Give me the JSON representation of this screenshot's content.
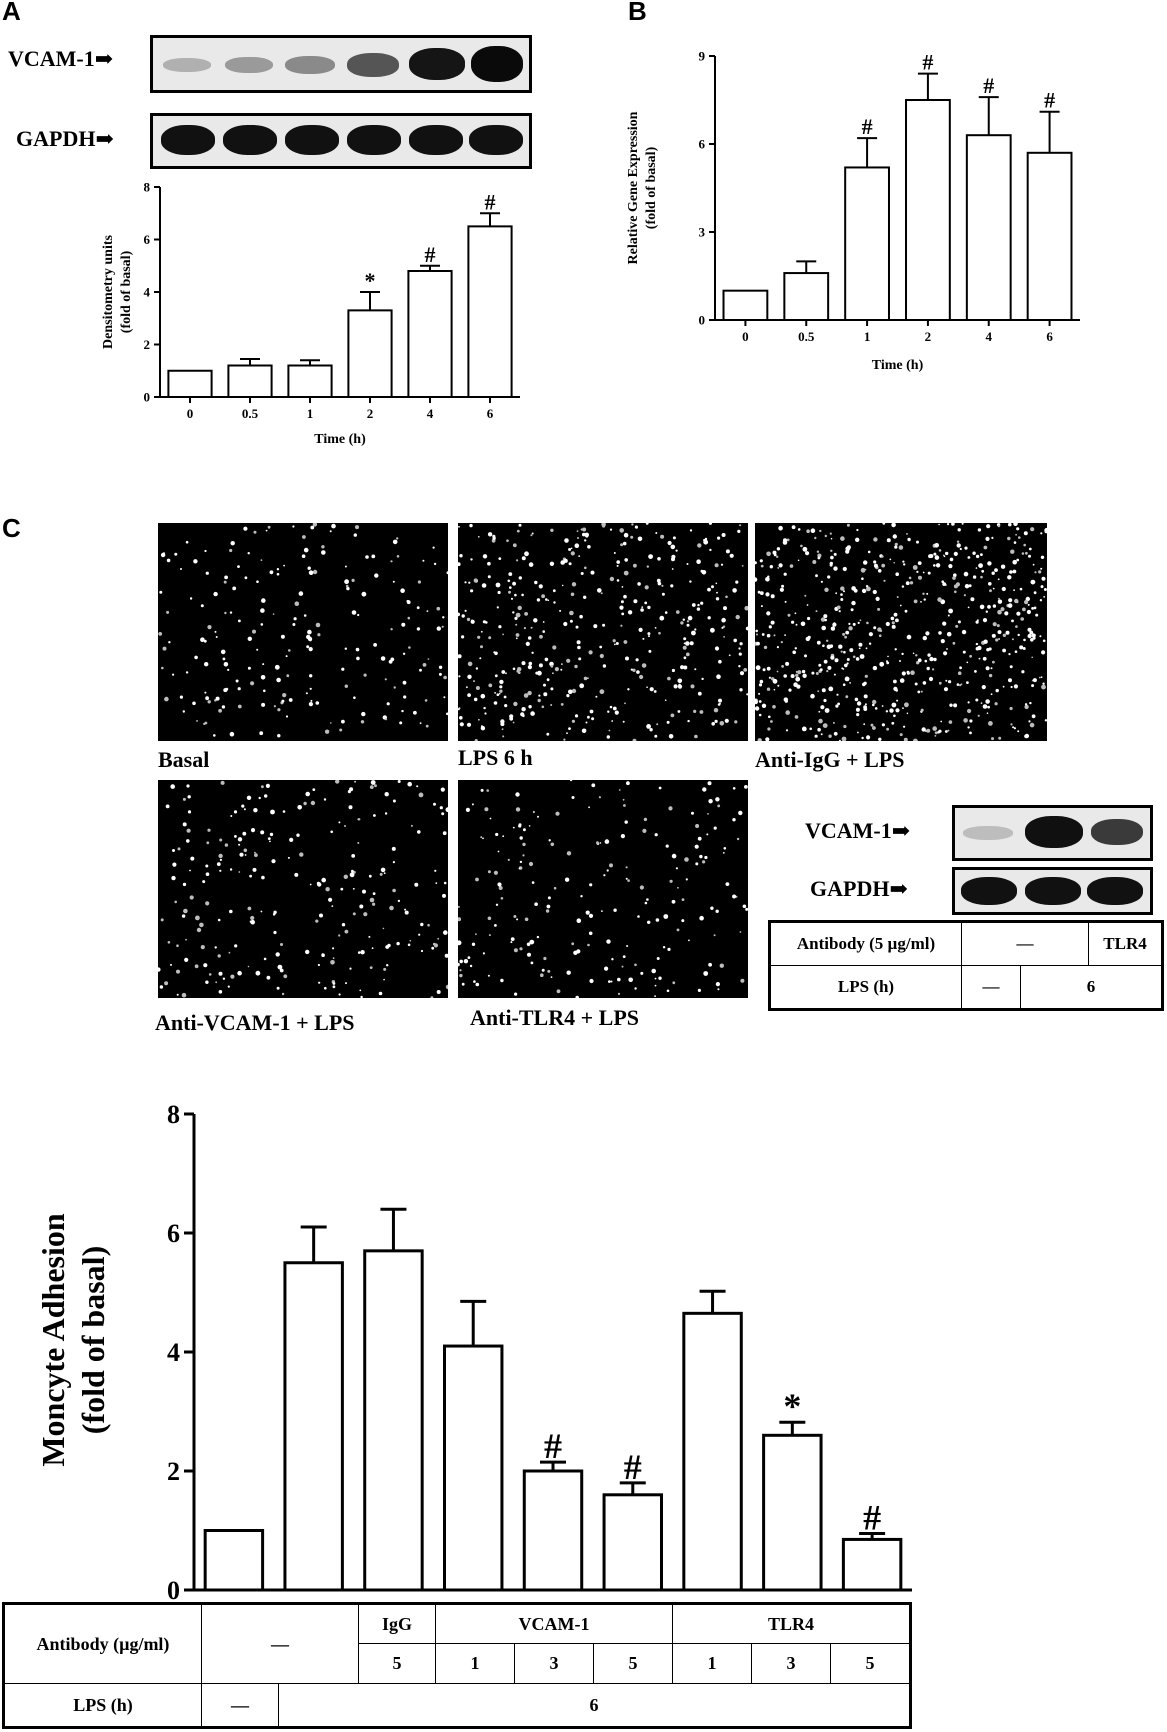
{
  "panels": {
    "a": "A",
    "b": "B",
    "c": "C"
  },
  "blot_a": {
    "label_top": "VCAM-1",
    "label_bottom": "GAPDH"
  },
  "blot_c": {
    "label_top": "VCAM-1",
    "label_bottom": "GAPDH"
  },
  "micrographs": [
    {
      "caption": "Basal",
      "density": 0.3
    },
    {
      "caption": "LPS 6 h",
      "density": 0.6
    },
    {
      "caption": "Anti-IgG + LPS",
      "density": 0.9
    },
    {
      "caption": "Anti-VCAM-1 + LPS",
      "density": 0.35
    },
    {
      "caption": "Anti-TLR4 + LPS",
      "density": 0.3
    }
  ],
  "small_table": {
    "antibody_label": "Antibody (5 µg/ml)",
    "antibody_none": "—",
    "antibody_tlr4": "TLR4",
    "lps_label": "LPS (h)",
    "lps_none": "—",
    "lps_value": "6"
  },
  "bottom_table": {
    "antibody_label": "Antibody (µg/ml)",
    "none": "—",
    "igg": "IgG",
    "vcam": "VCAM-1",
    "tlr4": "TLR4",
    "doses": [
      "5",
      "1",
      "3",
      "5",
      "1",
      "3",
      "5"
    ],
    "lps_label": "LPS (h)",
    "lps_none": "—",
    "lps_value": "6"
  },
  "chart_data": [
    {
      "type": "bar",
      "panel": "A",
      "categories": [
        "0",
        "0.5",
        "1",
        "2",
        "4",
        "6"
      ],
      "values": [
        1.0,
        1.2,
        1.2,
        3.3,
        4.8,
        6.5
      ],
      "errors": [
        0,
        0.25,
        0.2,
        0.7,
        0.2,
        0.5
      ],
      "annotations": [
        "",
        "",
        "",
        "*",
        "#",
        "#"
      ],
      "xlabel": "Time (h)",
      "ylabel": "Densitometry units (fold of basal)",
      "ylim": [
        0,
        8
      ],
      "yticks": [
        0,
        2,
        4,
        6,
        8
      ]
    },
    {
      "type": "bar",
      "panel": "B",
      "categories": [
        "0",
        "0.5",
        "1",
        "2",
        "4",
        "6"
      ],
      "values": [
        1.0,
        1.6,
        5.2,
        7.5,
        6.3,
        5.7
      ],
      "errors": [
        0,
        0.4,
        1.0,
        0.9,
        1.3,
        1.4
      ],
      "annotations": [
        "",
        "",
        "#",
        "#",
        "#",
        "#"
      ],
      "xlabel": "Time (h)",
      "ylabel": "Relative Gene Expression (fold of basal)",
      "ylim": [
        0,
        9
      ],
      "yticks": [
        0,
        3,
        6,
        9
      ]
    },
    {
      "type": "bar",
      "panel": "C",
      "categories": [
        "LPS —",
        "LPS 6",
        "IgG 5",
        "VCAM-1 1",
        "VCAM-1 3",
        "VCAM-1 5",
        "TLR4 1",
        "TLR4 3",
        "TLR4 5"
      ],
      "values": [
        1.0,
        5.5,
        5.7,
        4.1,
        2.0,
        1.6,
        4.65,
        2.6,
        0.85
      ],
      "errors": [
        0,
        0.6,
        0.7,
        0.75,
        0.15,
        0.2,
        0.37,
        0.22,
        0.1
      ],
      "annotations": [
        "",
        "",
        "",
        "",
        "#",
        "#",
        "",
        "*",
        "#"
      ],
      "ylabel": "Moncyte Adhesion (fold of basal)",
      "ylim": [
        0,
        8
      ],
      "yticks": [
        0,
        2,
        4,
        6,
        8
      ]
    }
  ]
}
